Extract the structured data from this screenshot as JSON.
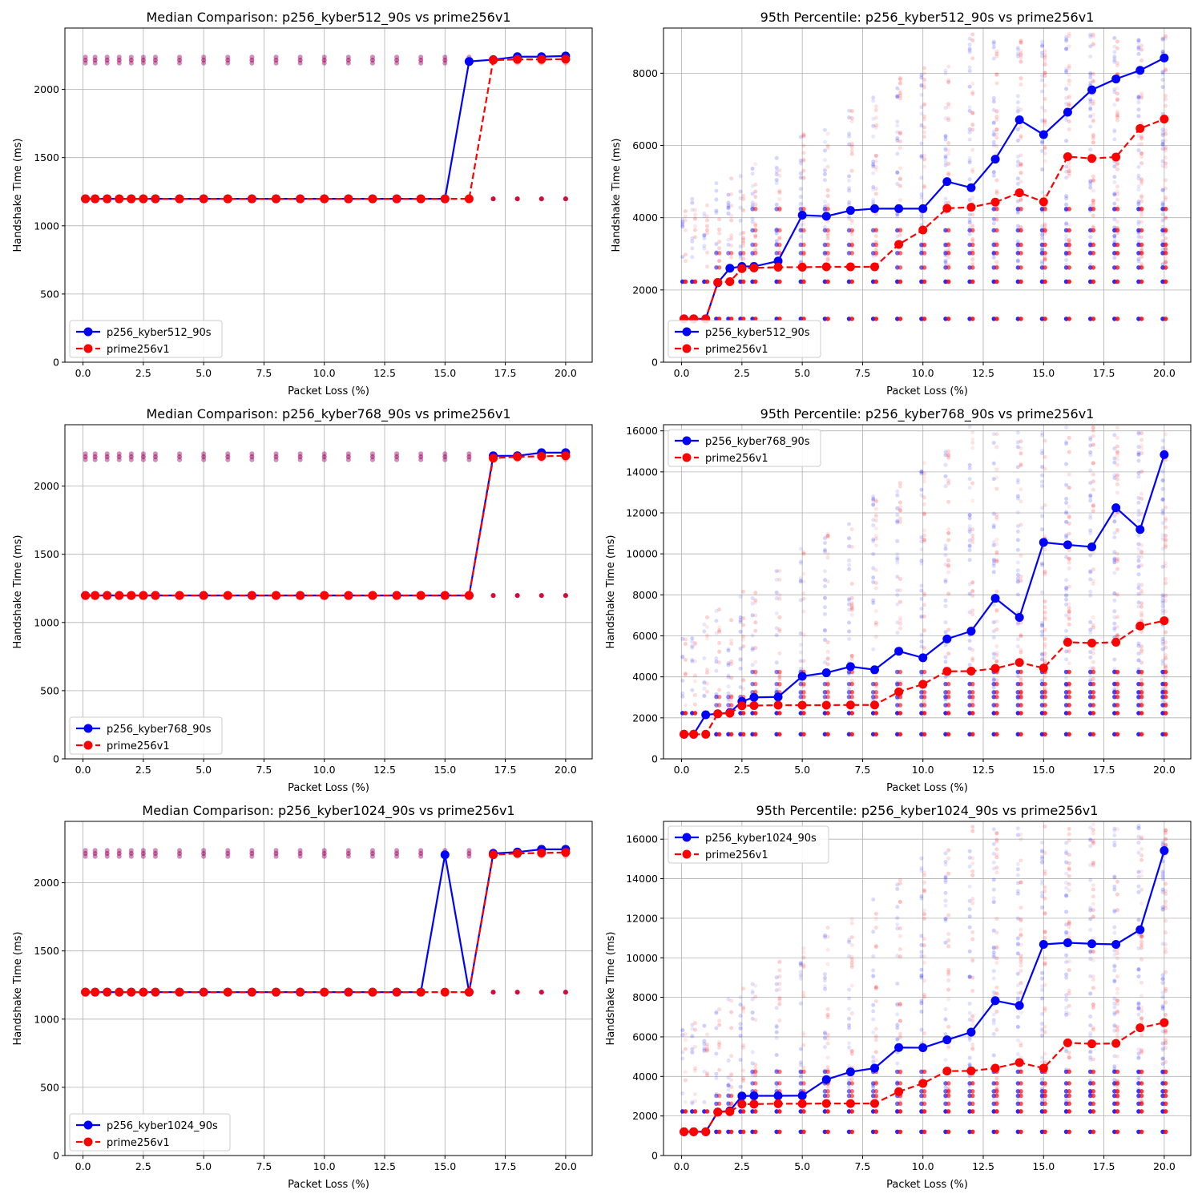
{
  "colors": {
    "pqc": "#0000ff",
    "classical": "#ff0000",
    "grid": "#b0b0b0"
  },
  "chart_data": [
    {
      "type": "line",
      "title": "Median Comparison: p256_kyber512_90s vs prime256v1",
      "xlabel": "Packet Loss (%)",
      "ylabel": "Handshake Time (ms)",
      "xlim": [
        -0.75,
        21.1
      ],
      "ylim": [
        0,
        2450
      ],
      "xticks": [
        "0.0",
        "2.5",
        "5.0",
        "7.5",
        "10.0",
        "12.5",
        "15.0",
        "17.5",
        "20.0"
      ],
      "yticks": [
        "0",
        "500",
        "1000",
        "1500",
        "2000"
      ],
      "grid": true,
      "legend": "lower-left",
      "x": [
        0.1,
        0.5,
        1,
        1.5,
        2,
        2.5,
        3,
        4,
        5,
        6,
        7,
        8,
        9,
        10,
        11,
        12,
        13,
        14,
        15,
        16,
        17,
        18,
        19,
        20
      ],
      "series": [
        {
          "name": "p256_kyber512_90s",
          "style": "solid",
          "values": [
            1198,
            1198,
            1198,
            1198,
            1198,
            1198,
            1198,
            1198,
            1198,
            1198,
            1198,
            1198,
            1198,
            1198,
            1198,
            1198,
            1198,
            1198,
            1198,
            2205,
            2218,
            2240,
            2240,
            2245
          ]
        },
        {
          "name": "prime256v1",
          "style": "dashed",
          "values": [
            1198,
            1198,
            1198,
            1198,
            1198,
            1198,
            1198,
            1198,
            1198,
            1198,
            1198,
            1198,
            1198,
            1198,
            1198,
            1198,
            1198,
            1198,
            1198,
            1198,
            2215,
            2220,
            2220,
            2222
          ]
        }
      ],
      "scatter_levels": [
        1198,
        2215
      ],
      "scatter_max": 2260
    },
    {
      "type": "line",
      "title": "95th Percentile: p256_kyber512_90s vs prime256v1",
      "xlabel": "Packet Loss (%)",
      "ylabel": "Handshake Time (ms)",
      "xlim": [
        -0.75,
        21.1
      ],
      "ylim": [
        0,
        9250
      ],
      "xticks": [
        "0.0",
        "2.5",
        "5.0",
        "7.5",
        "10.0",
        "12.5",
        "15.0",
        "17.5",
        "20.0"
      ],
      "yticks": [
        "0",
        "2000",
        "4000",
        "6000",
        "8000"
      ],
      "grid": true,
      "legend": "lower-left",
      "x": [
        0.1,
        0.5,
        1,
        1.5,
        2,
        2.5,
        3,
        4,
        5,
        6,
        7,
        8,
        9,
        10,
        11,
        12,
        13,
        14,
        15,
        16,
        17,
        18,
        19,
        20
      ],
      "series": [
        {
          "name": "p256_kyber512_90s",
          "style": "solid",
          "values": [
            1200,
            1200,
            1200,
            2200,
            2600,
            2650,
            2650,
            2800,
            4070,
            4040,
            4200,
            4250,
            4250,
            4250,
            5000,
            4830,
            5620,
            6710,
            6300,
            6920,
            7540,
            7840,
            8080,
            8420
          ]
        },
        {
          "name": "prime256v1",
          "style": "dashed",
          "values": [
            1200,
            1200,
            1200,
            2210,
            2230,
            2590,
            2610,
            2630,
            2630,
            2640,
            2640,
            2640,
            3260,
            3660,
            4260,
            4290,
            4430,
            4690,
            4440,
            5690,
            5640,
            5680,
            6470,
            6730
          ]
        }
      ],
      "scatter_levels": [
        1200,
        2230,
        2620,
        3020,
        3250,
        3650,
        4240
      ],
      "scatter_max": 9100
    },
    {
      "type": "line",
      "title": "Median Comparison: p256_kyber768_90s vs prime256v1",
      "xlabel": "Packet Loss (%)",
      "ylabel": "Handshake Time (ms)",
      "xlim": [
        -0.75,
        21.1
      ],
      "ylim": [
        0,
        2450
      ],
      "xticks": [
        "0.0",
        "2.5",
        "5.0",
        "7.5",
        "10.0",
        "12.5",
        "15.0",
        "17.5",
        "20.0"
      ],
      "yticks": [
        "0",
        "500",
        "1000",
        "1500",
        "2000"
      ],
      "grid": true,
      "legend": "lower-left",
      "x": [
        0.1,
        0.5,
        1,
        1.5,
        2,
        2.5,
        3,
        4,
        5,
        6,
        7,
        8,
        9,
        10,
        11,
        12,
        13,
        14,
        15,
        16,
        17,
        18,
        19,
        20
      ],
      "series": [
        {
          "name": "p256_kyber768_90s",
          "style": "solid",
          "values": [
            1198,
            1198,
            1198,
            1198,
            1198,
            1198,
            1198,
            1198,
            1198,
            1198,
            1198,
            1198,
            1198,
            1198,
            1198,
            1198,
            1198,
            1198,
            1198,
            1198,
            2222,
            2222,
            2245,
            2245
          ]
        },
        {
          "name": "prime256v1",
          "style": "dashed",
          "values": [
            1198,
            1198,
            1198,
            1198,
            1198,
            1198,
            1198,
            1198,
            1198,
            1198,
            1198,
            1198,
            1198,
            1198,
            1198,
            1198,
            1198,
            1198,
            1198,
            1198,
            2205,
            2215,
            2218,
            2222
          ]
        }
      ],
      "scatter_levels": [
        1198,
        2215
      ],
      "scatter_max": 2260
    },
    {
      "type": "line",
      "title": "95th Percentile: p256_kyber768_90s vs prime256v1",
      "xlabel": "Packet Loss (%)",
      "ylabel": "Handshake Time (ms)",
      "xlim": [
        -0.75,
        21.1
      ],
      "ylim": [
        0,
        16300
      ],
      "xticks": [
        "0.0",
        "2.5",
        "5.0",
        "7.5",
        "10.0",
        "12.5",
        "15.0",
        "17.5",
        "20.0"
      ],
      "yticks": [
        "0",
        "2000",
        "4000",
        "6000",
        "8000",
        "10000",
        "12000",
        "14000",
        "16000"
      ],
      "grid": true,
      "legend": "upper-left",
      "x": [
        0.1,
        0.5,
        1,
        1.5,
        2,
        2.5,
        3,
        4,
        5,
        6,
        7,
        8,
        9,
        10,
        11,
        12,
        13,
        14,
        15,
        16,
        17,
        18,
        19,
        20
      ],
      "series": [
        {
          "name": "p256_kyber768_90s",
          "style": "solid",
          "values": [
            1200,
            1200,
            2150,
            2200,
            2260,
            2800,
            3000,
            3020,
            4030,
            4200,
            4500,
            4350,
            5250,
            4930,
            5850,
            6230,
            7830,
            6900,
            10560,
            10440,
            10340,
            12250,
            11190,
            14840
          ]
        },
        {
          "name": "prime256v1",
          "style": "dashed",
          "values": [
            1200,
            1200,
            1200,
            2200,
            2230,
            2590,
            2600,
            2620,
            2620,
            2620,
            2630,
            2630,
            3270,
            3640,
            4270,
            4280,
            4410,
            4700,
            4430,
            5690,
            5650,
            5690,
            6480,
            6740
          ]
        }
      ],
      "scatter_levels": [
        1200,
        2230,
        2620,
        3020,
        3250,
        3650,
        4240
      ],
      "scatter_max": 16200
    },
    {
      "type": "line",
      "title": "Median Comparison: p256_kyber1024_90s vs prime256v1",
      "xlabel": "Packet Loss (%)",
      "ylabel": "Handshake Time (ms)",
      "xlim": [
        -0.75,
        21.1
      ],
      "ylim": [
        0,
        2450
      ],
      "xticks": [
        "0.0",
        "2.5",
        "5.0",
        "7.5",
        "10.0",
        "12.5",
        "15.0",
        "17.5",
        "20.0"
      ],
      "yticks": [
        "0",
        "500",
        "1000",
        "1500",
        "2000"
      ],
      "grid": true,
      "legend": "lower-left",
      "x": [
        0.1,
        0.5,
        1,
        1.5,
        2,
        2.5,
        3,
        4,
        5,
        6,
        7,
        8,
        9,
        10,
        11,
        12,
        13,
        14,
        15,
        16,
        17,
        18,
        19,
        20
      ],
      "series": [
        {
          "name": "p256_kyber1024_90s",
          "style": "solid",
          "values": [
            1198,
            1198,
            1198,
            1198,
            1198,
            1198,
            1198,
            1198,
            1198,
            1198,
            1198,
            1198,
            1198,
            1198,
            1198,
            1198,
            1198,
            1198,
            2205,
            1198,
            2215,
            2225,
            2245,
            2245
          ]
        },
        {
          "name": "prime256v1",
          "style": "dashed",
          "values": [
            1198,
            1198,
            1198,
            1198,
            1198,
            1198,
            1198,
            1198,
            1198,
            1198,
            1198,
            1198,
            1198,
            1198,
            1198,
            1198,
            1198,
            1198,
            1198,
            1198,
            2205,
            2215,
            2218,
            2222
          ]
        }
      ],
      "scatter_levels": [
        1198,
        2215
      ],
      "scatter_max": 2260
    },
    {
      "type": "line",
      "title": "95th Percentile: p256_kyber1024_90s vs prime256v1",
      "xlabel": "Packet Loss (%)",
      "ylabel": "Handshake Time (ms)",
      "xlim": [
        -0.75,
        21.1
      ],
      "ylim": [
        0,
        16900
      ],
      "xticks": [
        "0.0",
        "2.5",
        "5.0",
        "7.5",
        "10.0",
        "12.5",
        "15.0",
        "17.5",
        "20.0"
      ],
      "yticks": [
        "0",
        "2000",
        "4000",
        "6000",
        "8000",
        "10000",
        "12000",
        "14000",
        "16000"
      ],
      "grid": true,
      "legend": "upper-left",
      "x": [
        0.1,
        0.5,
        1,
        1.5,
        2,
        2.5,
        3,
        4,
        5,
        6,
        7,
        8,
        9,
        10,
        11,
        12,
        13,
        14,
        15,
        16,
        17,
        18,
        19,
        20
      ],
      "series": [
        {
          "name": "p256_kyber1024_90s",
          "style": "solid",
          "values": [
            1200,
            1200,
            1200,
            2200,
            2260,
            3010,
            3020,
            3020,
            3030,
            3840,
            4230,
            4420,
            5460,
            5450,
            5850,
            6240,
            7830,
            7590,
            10680,
            10760,
            10710,
            10680,
            11420,
            15420
          ]
        },
        {
          "name": "prime256v1",
          "style": "dashed",
          "values": [
            1200,
            1200,
            1200,
            2200,
            2220,
            2600,
            2600,
            2620,
            2620,
            2630,
            2630,
            2630,
            3230,
            3650,
            4270,
            4280,
            4420,
            4700,
            4420,
            5700,
            5650,
            5670,
            6460,
            6720
          ]
        }
      ],
      "scatter_levels": [
        1200,
        2230,
        2620,
        3020,
        3250,
        3650,
        4240
      ],
      "scatter_max": 16800
    }
  ]
}
